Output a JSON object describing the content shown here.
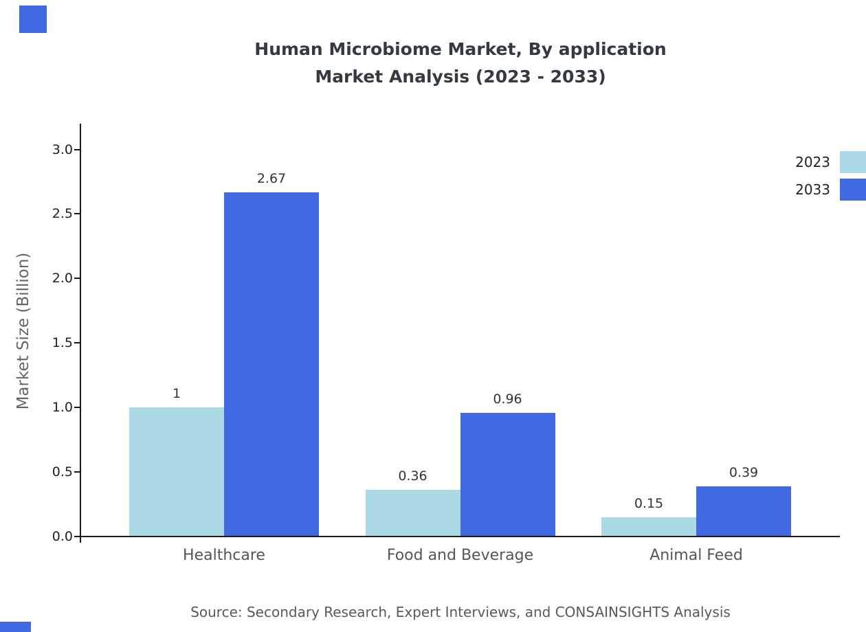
{
  "title": {
    "line1": "Human Microbiome Market, By application",
    "line2": "Market Analysis (2023 - 2033)"
  },
  "source": "Source: Secondary Research, Expert Interviews, and CONSAINSIGHTS Analysis",
  "legend": {
    "items": [
      {
        "label": "2023",
        "color": "#add8e6"
      },
      {
        "label": "2033",
        "color": "#4169e1"
      }
    ]
  },
  "chart_data": {
    "type": "bar",
    "title": "Human Microbiome Market, By application Market Analysis (2023 - 2033)",
    "categories": [
      "Healthcare",
      "Food and Beverage",
      "Animal Feed"
    ],
    "series": [
      {
        "name": "2023",
        "color": "#add8e6",
        "values": [
          1,
          0.36,
          0.15
        ],
        "labels": [
          "1",
          "0.36",
          "0.15"
        ]
      },
      {
        "name": "2033",
        "color": "#4169e1",
        "values": [
          2.67,
          0.96,
          0.39
        ],
        "labels": [
          "2.67",
          "0.96",
          "0.39"
        ]
      }
    ],
    "xlabel": "",
    "ylabel": "Market Size (Billion)",
    "ylim": [
      0,
      3.2
    ],
    "yticks": [
      0.0,
      0.5,
      1.0,
      1.5,
      2.0,
      2.5,
      3.0
    ],
    "ytick_labels": [
      "0.0",
      "0.5",
      "1.0",
      "1.5",
      "2.0",
      "2.5",
      "3.0"
    ],
    "grid": false,
    "legend_position": "upper right"
  }
}
